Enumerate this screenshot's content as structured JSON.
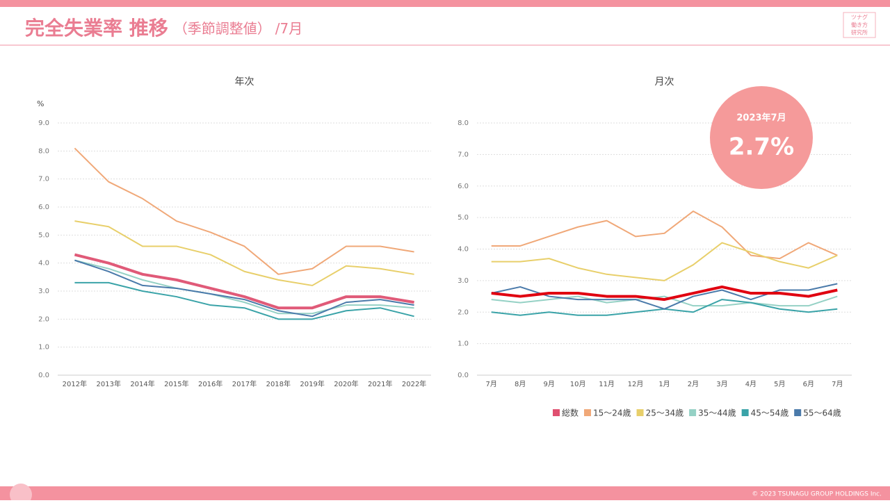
{
  "header": {
    "title": "完全失業率 推移",
    "subtitle": "（季節調整値）",
    "suffix": "/7月",
    "logo": [
      "ツナグ",
      "働き方",
      "研究所"
    ]
  },
  "badge": {
    "title": "2023年7月",
    "text": "2.7%"
  },
  "footer": {
    "copyright": "© 2023 TSUNAGU GROUP HOLDINGS Inc."
  },
  "legend": [
    {
      "name": "総数",
      "color": "#e05070"
    },
    {
      "name": "15〜24歳",
      "color": "#f0a878"
    },
    {
      "name": "25〜34歳",
      "color": "#e8cf6a"
    },
    {
      "name": "35〜44歳",
      "color": "#95d1c5"
    },
    {
      "name": "45〜54歳",
      "color": "#3aa3a8"
    },
    {
      "name": "55〜64歳",
      "color": "#4a7aaa"
    }
  ],
  "chart_data": [
    {
      "type": "line",
      "title": "年次",
      "y_unit": "%",
      "categories": [
        "2012年",
        "2013年",
        "2014年",
        "2015年",
        "2016年",
        "2017年",
        "2018年",
        "2019年",
        "2020年",
        "2021年",
        "2022年"
      ],
      "series": [
        {
          "color": "#f0a878",
          "values": [
            8.1,
            6.9,
            6.3,
            5.5,
            5.1,
            4.6,
            3.6,
            3.8,
            4.6,
            4.6,
            4.4
          ]
        },
        {
          "color": "#e8cf6a",
          "values": [
            5.5,
            5.3,
            4.6,
            4.6,
            4.3,
            3.7,
            3.4,
            3.2,
            3.9,
            3.8,
            3.6
          ]
        },
        {
          "color": "#95d1c5",
          "values": [
            4.1,
            3.8,
            3.4,
            3.1,
            2.9,
            2.6,
            2.2,
            2.2,
            2.5,
            2.5,
            2.4
          ]
        },
        {
          "color": "#3aa3a8",
          "values": [
            3.3,
            3.3,
            3.0,
            2.8,
            2.5,
            2.4,
            2.0,
            2.0,
            2.3,
            2.4,
            2.1
          ]
        },
        {
          "color": "#4a7aaa",
          "values": [
            4.1,
            3.7,
            3.2,
            3.1,
            2.9,
            2.7,
            2.3,
            2.1,
            2.6,
            2.7,
            2.5
          ]
        },
        {
          "color": "#e05a78",
          "width": 4,
          "values": [
            4.3,
            4.0,
            3.6,
            3.4,
            3.1,
            2.8,
            2.4,
            2.4,
            2.8,
            2.8,
            2.6
          ]
        }
      ],
      "ylim": [
        0,
        9
      ],
      "yticks": [
        {
          "value": 0,
          "label": "0.0"
        },
        {
          "value": 1,
          "label": "1.0"
        },
        {
          "value": 2,
          "label": "2.0"
        },
        {
          "value": 3,
          "label": "3.0"
        },
        {
          "value": 4,
          "label": "4.0"
        },
        {
          "value": 5,
          "label": "5.0"
        },
        {
          "value": 6,
          "label": "6.0"
        },
        {
          "value": 7,
          "label": "7.0"
        },
        {
          "value": 8,
          "label": "8.0"
        },
        {
          "value": 9,
          "label": "9.0"
        }
      ],
      "grid": true
    },
    {
      "type": "line",
      "title": "月次",
      "categories": [
        "7月",
        "8月",
        "9月",
        "10月",
        "11月",
        "12月",
        "1月",
        "2月",
        "3月",
        "4月",
        "5月",
        "6月",
        "7月"
      ],
      "series": [
        {
          "color": "#f0a878",
          "values": [
            4.1,
            4.1,
            4.4,
            4.7,
            4.9,
            4.4,
            4.5,
            5.2,
            4.7,
            3.8,
            3.7,
            4.2,
            3.8
          ]
        },
        {
          "color": "#e8cf6a",
          "values": [
            3.6,
            3.6,
            3.7,
            3.4,
            3.2,
            3.1,
            3.0,
            3.5,
            4.2,
            3.9,
            3.6,
            3.4,
            3.8
          ]
        },
        {
          "color": "#95d1c5",
          "values": [
            2.4,
            2.3,
            2.4,
            2.5,
            2.3,
            2.4,
            2.5,
            2.2,
            2.2,
            2.3,
            2.2,
            2.2,
            2.5
          ]
        },
        {
          "color": "#3aa3a8",
          "values": [
            2.0,
            1.9,
            2.0,
            1.9,
            1.9,
            2.0,
            2.1,
            2.0,
            2.4,
            2.3,
            2.1,
            2.0,
            2.1
          ]
        },
        {
          "color": "#4a7aaa",
          "values": [
            2.6,
            2.8,
            2.5,
            2.4,
            2.4,
            2.4,
            2.1,
            2.5,
            2.7,
            2.4,
            2.7,
            2.7,
            2.9
          ]
        },
        {
          "color": "#e00010",
          "width": 4,
          "values": [
            2.6,
            2.5,
            2.6,
            2.6,
            2.5,
            2.5,
            2.4,
            2.6,
            2.8,
            2.6,
            2.6,
            2.5,
            2.7
          ]
        }
      ],
      "ylim": [
        0,
        8
      ],
      "yticks": [
        {
          "value": 0,
          "label": "0.0"
        },
        {
          "value": 1,
          "label": "1.0"
        },
        {
          "value": 2,
          "label": "2.0"
        },
        {
          "value": 3,
          "label": "3.0"
        },
        {
          "value": 4,
          "label": "4.0"
        },
        {
          "value": 5,
          "label": "5.0"
        },
        {
          "value": 6,
          "label": "6.0"
        },
        {
          "value": 7,
          "label": "7.0"
        },
        {
          "value": 8,
          "label": "8.0"
        }
      ],
      "grid": true
    }
  ]
}
